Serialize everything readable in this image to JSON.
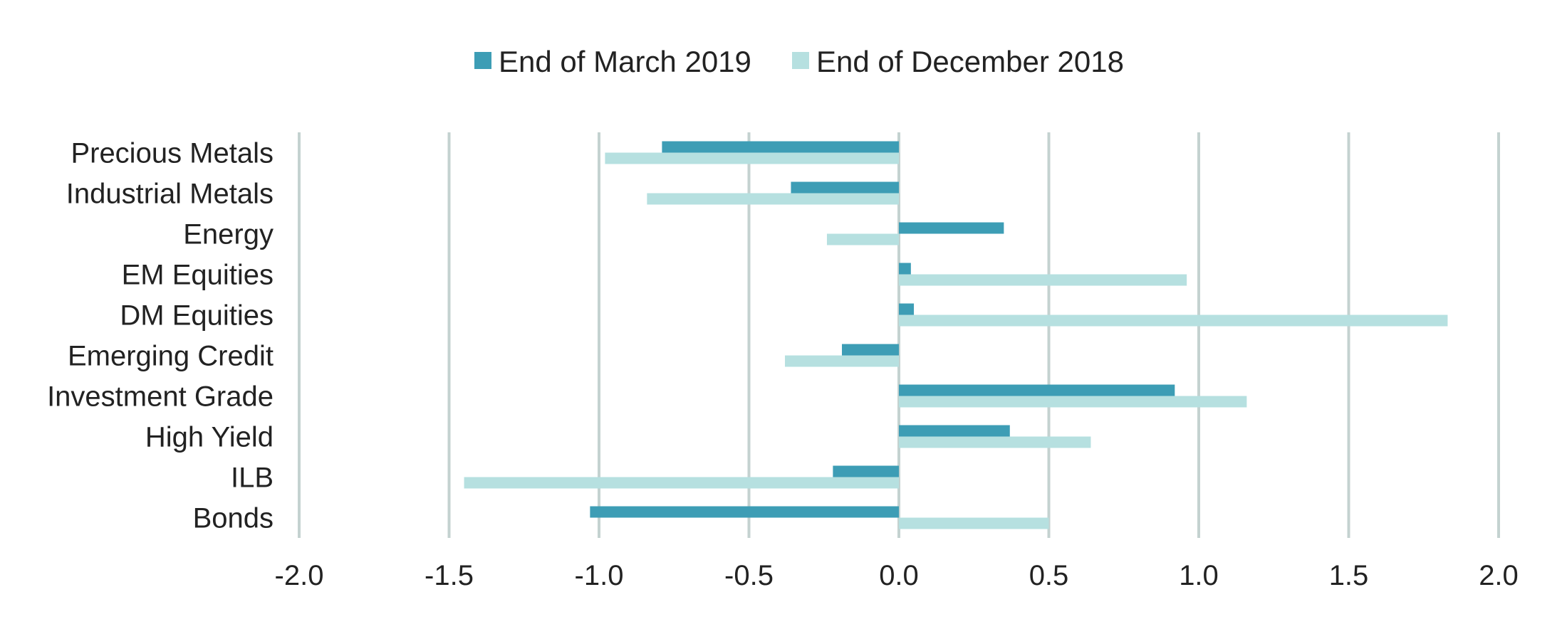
{
  "chart_data": {
    "type": "bar",
    "orientation": "horizontal",
    "categories": [
      "Precious Metals",
      "Industrial Metals",
      "Energy",
      "EM Equities",
      "DM Equities",
      "Emerging Credit",
      "Investment Grade",
      "High Yield",
      "ILB",
      "Bonds"
    ],
    "series": [
      {
        "name": "End of March 2019",
        "color": "#3d9db5",
        "values": [
          -0.79,
          -0.36,
          0.35,
          0.04,
          0.05,
          -0.19,
          0.92,
          0.37,
          -0.22,
          -1.03
        ]
      },
      {
        "name": "End of December 2018",
        "color": "#b6e0e0",
        "values": [
          -0.98,
          -0.84,
          -0.24,
          0.96,
          1.83,
          -0.38,
          1.16,
          0.64,
          -1.45,
          0.5
        ]
      }
    ],
    "xlim": [
      -2.0,
      2.0
    ],
    "xticks": [
      "-2.0",
      "-1.5",
      "-1.0",
      "-0.5",
      "0.0",
      "0.5",
      "1.0",
      "1.5",
      "2.0"
    ],
    "xtick_values": [
      -2.0,
      -1.5,
      -1.0,
      -0.5,
      0.0,
      0.5,
      1.0,
      1.5,
      2.0
    ],
    "grid": "vertical",
    "grid_color": "#c4d2d0",
    "legend_position": "top-center",
    "title": "",
    "xlabel": "",
    "ylabel": ""
  }
}
